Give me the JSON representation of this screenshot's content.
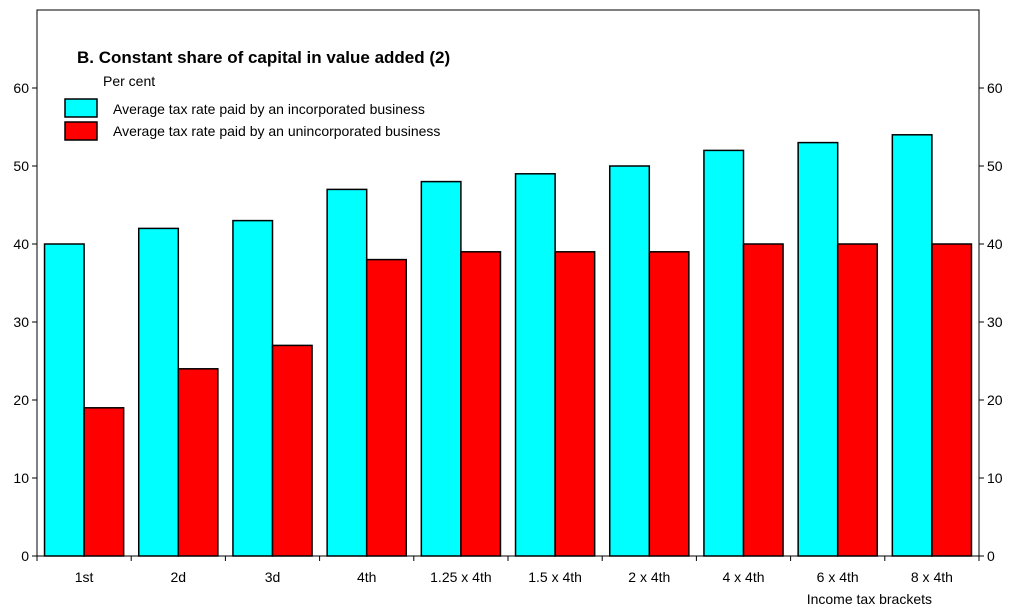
{
  "chart_data": {
    "type": "bar",
    "title": "B. Constant share of capital in value added (2)",
    "subtitle": "Per cent",
    "xlabel": "Income tax brackets",
    "categories": [
      "1st",
      "2d",
      "3d",
      "4th",
      "1.25 x 4th",
      "1.5 x 4th",
      "2 x 4th",
      "4 x 4th",
      "6 x 4th",
      "8 x 4th"
    ],
    "series": [
      {
        "name": "Average tax rate paid by an incorporated business",
        "color": "#00FFFF",
        "values": [
          40,
          42,
          43,
          47,
          48,
          49,
          50,
          52,
          53,
          54
        ]
      },
      {
        "name": "Average tax rate paid by an unincorporated business",
        "color": "#FF0000",
        "values": [
          19,
          24,
          27,
          38,
          39,
          39,
          39,
          40,
          40,
          40
        ]
      }
    ],
    "ylim": [
      0,
      70
    ],
    "yticks": [
      0,
      10,
      20,
      30,
      40,
      50,
      60
    ],
    "grid": false,
    "legend": "top-left"
  }
}
